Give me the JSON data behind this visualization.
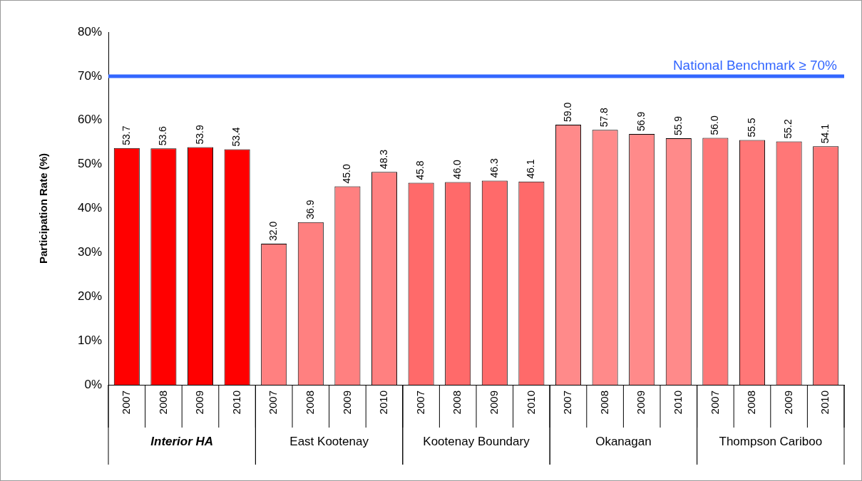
{
  "chart_data": {
    "type": "bar",
    "ylabel": "Participation Rate (%)",
    "categories": [
      "2007",
      "2008",
      "2009",
      "2010",
      "2007",
      "2008",
      "2009",
      "2010",
      "2007",
      "2008",
      "2009",
      "2010",
      "2007",
      "2008",
      "2009",
      "2010",
      "2007",
      "2008",
      "2009",
      "2010"
    ],
    "series": [
      {
        "name": "Interior HA",
        "color": "#ff0000",
        "values": [
          53.7,
          53.6,
          53.9,
          53.4,
          null,
          null,
          null,
          null,
          null,
          null,
          null,
          null,
          null,
          null,
          null,
          null,
          null,
          null,
          null,
          null
        ],
        "value_labels": [
          "53.7",
          "53.6",
          "53.9",
          "53.4",
          null,
          null,
          null,
          null,
          null,
          null,
          null,
          null,
          null,
          null,
          null,
          null,
          null,
          null,
          null,
          null
        ]
      },
      {
        "name": "East Kootenay",
        "color": "#ff8080",
        "values": [
          null,
          null,
          null,
          null,
          32.0,
          36.9,
          45.0,
          48.3,
          null,
          null,
          null,
          null,
          null,
          null,
          null,
          null,
          null,
          null,
          null,
          null
        ],
        "value_labels": [
          null,
          null,
          null,
          null,
          "32.0",
          "36.9",
          "45.0",
          "48.3",
          null,
          null,
          null,
          null,
          null,
          null,
          null,
          null,
          null,
          null,
          null,
          null
        ]
      },
      {
        "name": "Kootenay Boundary",
        "color": "#ff6a6a",
        "values": [
          null,
          null,
          null,
          null,
          null,
          null,
          null,
          null,
          45.8,
          46.0,
          46.3,
          46.1,
          null,
          null,
          null,
          null,
          null,
          null,
          null,
          null
        ],
        "value_labels": [
          null,
          null,
          null,
          null,
          null,
          null,
          null,
          null,
          "45.8",
          "46.0",
          "46.3",
          "46.1",
          null,
          null,
          null,
          null,
          null,
          null,
          null,
          null
        ]
      },
      {
        "name": "Okanagan",
        "color": "#ff8a8a",
        "values": [
          null,
          null,
          null,
          null,
          null,
          null,
          null,
          null,
          null,
          null,
          null,
          null,
          59.0,
          57.8,
          56.9,
          55.9,
          null,
          null,
          null,
          null
        ],
        "value_labels": [
          null,
          null,
          null,
          null,
          null,
          null,
          null,
          null,
          null,
          null,
          null,
          null,
          "59.0",
          "57.8",
          "56.9",
          "55.9",
          null,
          null,
          null,
          null
        ]
      },
      {
        "name": "Thompson Cariboo",
        "color": "#ff7777",
        "values": [
          null,
          null,
          null,
          null,
          null,
          null,
          null,
          null,
          null,
          null,
          null,
          null,
          null,
          null,
          null,
          null,
          56.0,
          55.5,
          55.2,
          54.1
        ],
        "value_labels": [
          null,
          null,
          null,
          null,
          null,
          null,
          null,
          null,
          null,
          null,
          null,
          null,
          null,
          null,
          null,
          null,
          "56.0",
          "55.5",
          "55.2",
          "54.1"
        ]
      }
    ],
    "ylim": [
      0,
      80
    ],
    "yticks": [
      {
        "value": 0,
        "label": "0%"
      },
      {
        "value": 10,
        "label": "10%"
      },
      {
        "value": 20,
        "label": "20%"
      },
      {
        "value": 30,
        "label": "30%"
      },
      {
        "value": 40,
        "label": "40%"
      },
      {
        "value": 50,
        "label": "50%"
      },
      {
        "value": 60,
        "label": "60%"
      },
      {
        "value": 70,
        "label": "70%"
      },
      {
        "value": 80,
        "label": "80%"
      }
    ],
    "ref_lines": [
      {
        "axis": "y",
        "value": 70,
        "label": "National Benchmark ≥ 70%",
        "color": "#3366ff"
      }
    ],
    "grid": false,
    "legend": false
  }
}
